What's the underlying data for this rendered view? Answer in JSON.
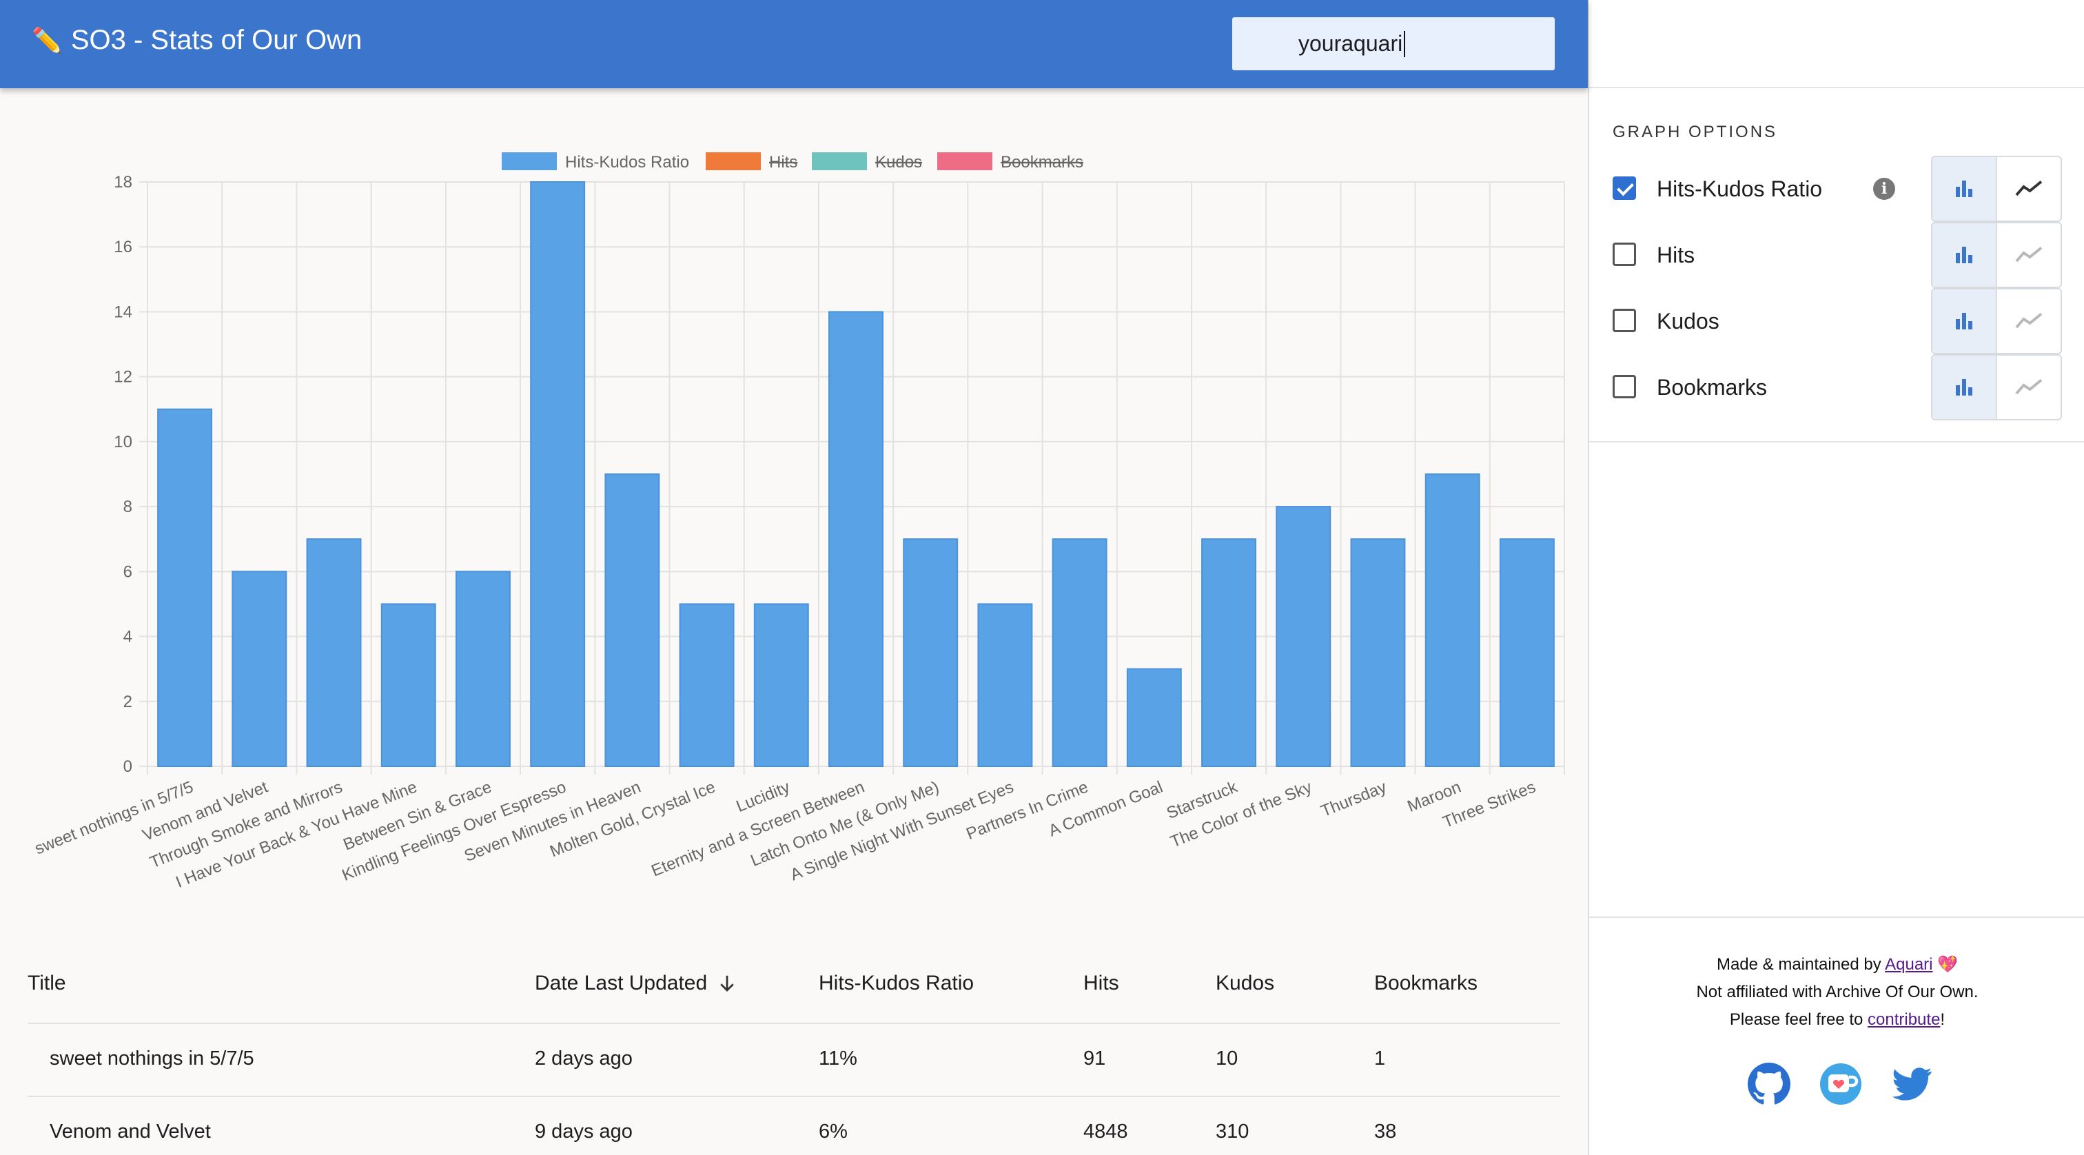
{
  "header": {
    "title": "SO3 - Stats of Our Own",
    "icon": "pencil-icon",
    "search_value": "youraquari"
  },
  "sidebar": {
    "heading": "GRAPH OPTIONS",
    "options": [
      {
        "label": "Hits-Kudos Ratio",
        "checked": true,
        "info": true,
        "bar_color": "#3b75cc",
        "line_color": "#333333"
      },
      {
        "label": "Hits",
        "checked": false,
        "info": false,
        "bar_color": "#3b75cc",
        "line_color": "#b8b8b8"
      },
      {
        "label": "Kudos",
        "checked": false,
        "info": false,
        "bar_color": "#3b75cc",
        "line_color": "#b8b8b8"
      },
      {
        "label": "Bookmarks",
        "checked": false,
        "info": false,
        "bar_color": "#3b75cc",
        "line_color": "#b8b8b8"
      }
    ],
    "footer": {
      "made_by_prefix": "Made & maintained by ",
      "made_by_link": "Aquari",
      "heart": "💖",
      "not_affiliated": "Not affiliated with Archive Of Our Own.",
      "contribute_prefix": "Please feel free to ",
      "contribute_link": "contribute",
      "contribute_suffix": "!"
    },
    "social_icons": [
      "github-icon",
      "ko-fi-icon",
      "twitter-icon"
    ]
  },
  "chart_data": {
    "type": "bar",
    "legend": [
      {
        "name": "Hits-Kudos Ratio",
        "color": "#5aa2e6",
        "active": true
      },
      {
        "name": "Hits",
        "color": "#ef7a3a",
        "active": false
      },
      {
        "name": "Kudos",
        "color": "#6fc3bf",
        "active": false
      },
      {
        "name": "Bookmarks",
        "color": "#ee6c85",
        "active": false
      }
    ],
    "legend_position": "top-center",
    "categories": [
      "sweet nothings in 5/7/5",
      "Venom and Velvet",
      "Through Smoke and Mirrors",
      "I Have Your Back & You Have Mine",
      "Between Sin & Grace",
      "Kindling Feelings Over Espresso",
      "Seven Minutes in Heaven",
      "Molten Gold, Crystal Ice",
      "Lucidity",
      "Eternity and a Screen Between",
      "Latch Onto Me (& Only Me)",
      "A Single Night With Sunset Eyes",
      "Partners In Crime",
      "A Common Goal",
      "Starstruck",
      "The Color of the Sky",
      "Thursday",
      "Maroon",
      "Three Strikes"
    ],
    "series": [
      {
        "name": "Hits-Kudos Ratio",
        "values": [
          11,
          6,
          7,
          5,
          6,
          18,
          9,
          5,
          5,
          14,
          7,
          5,
          7,
          3,
          7,
          8,
          7,
          9,
          7
        ]
      }
    ],
    "ylim": [
      0,
      18
    ],
    "yticks": [
      "0",
      "2",
      "4",
      "6",
      "8",
      "10",
      "12",
      "14",
      "16",
      "18"
    ],
    "grid": true
  },
  "table": {
    "headers": [
      "Title",
      "Date Last Updated",
      "Hits-Kudos Ratio",
      "Hits",
      "Kudos",
      "Bookmarks"
    ],
    "sort_icon": "arrow-down-icon",
    "rows": [
      [
        "sweet nothings in 5/7/5",
        "2 days ago",
        "11%",
        "91",
        "10",
        "1"
      ],
      [
        "Venom and Velvet",
        "9 days ago",
        "6%",
        "4848",
        "310",
        "38"
      ]
    ]
  }
}
